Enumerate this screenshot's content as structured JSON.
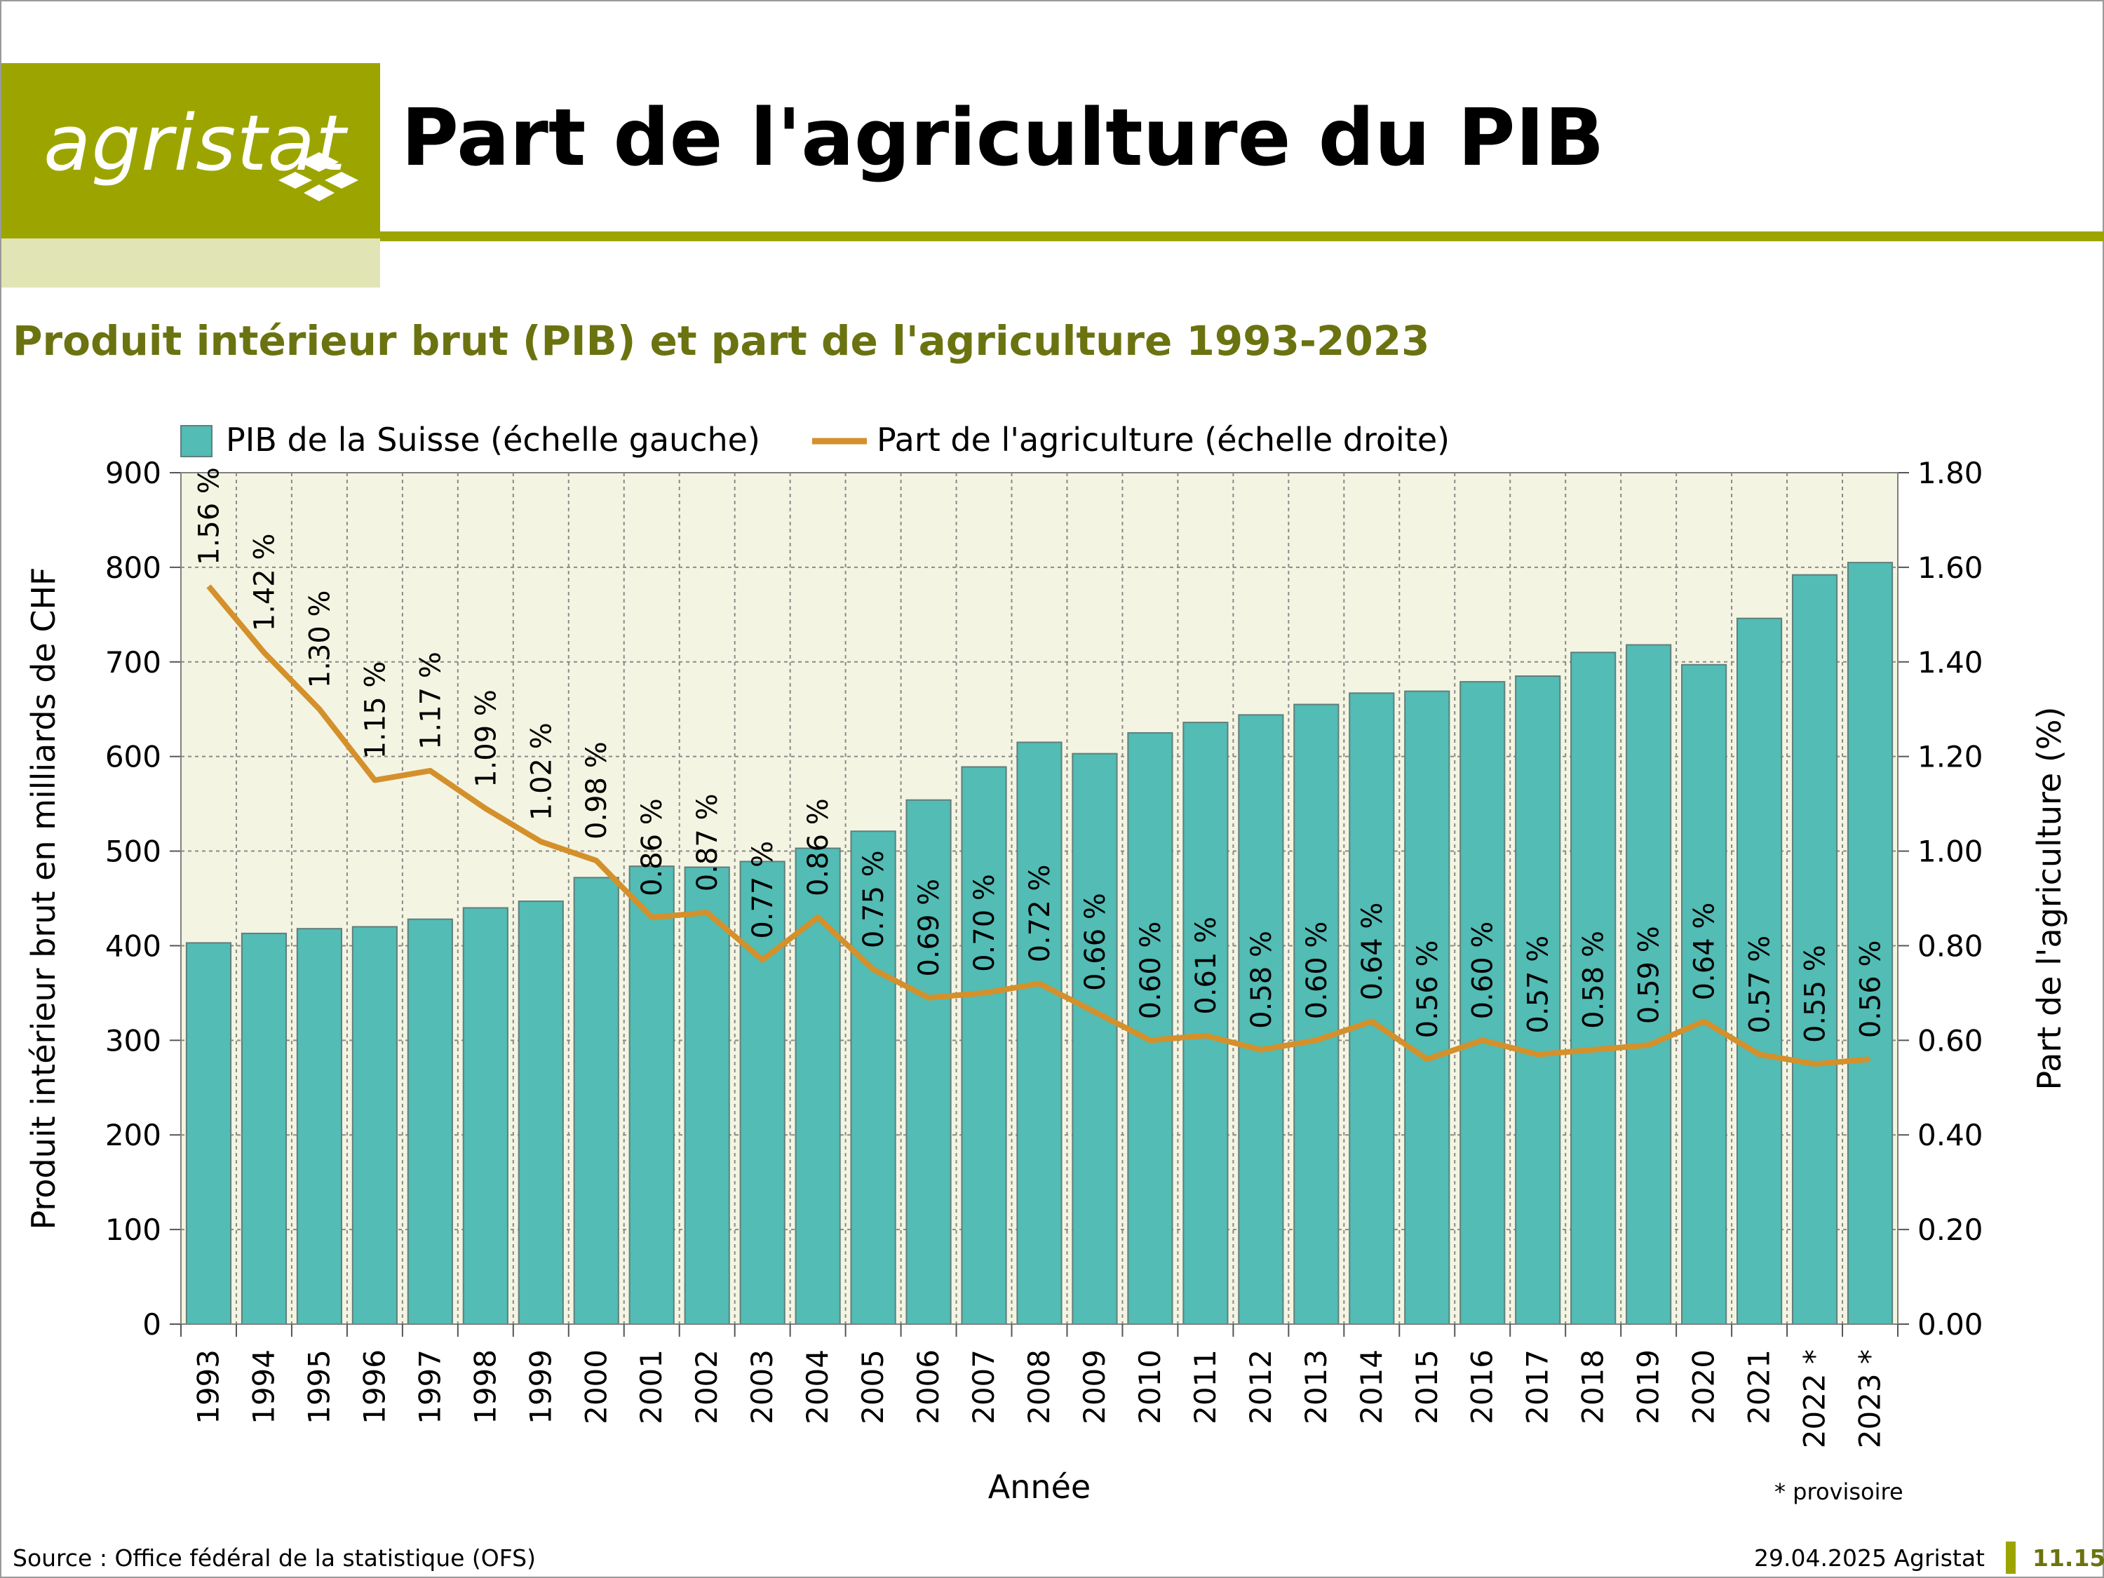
{
  "header": {
    "logo_text": "agristat",
    "title": "Part de l'agriculture du PIB"
  },
  "chart_title": "Produit intérieur brut (PIB) et part de l'agriculture 1993-2023",
  "footer": {
    "source": "Source : Office fédéral de la statistique (OFS)",
    "date": "29.04.2025 Agristat",
    "page": "11.15"
  },
  "note": "* provisoire",
  "colors": {
    "brand": "#9ca500",
    "bar": "#52bcb5",
    "line": "#d4902b",
    "plot_bg": "#f4f4e2",
    "title_green": "#6b7310"
  },
  "chart_data": {
    "type": "bar",
    "title": "Produit intérieur brut (PIB) et part de l'agriculture 1993-2023",
    "xlabel": "Année",
    "ylabel": "Produit intérieur brut en milliards de CHF",
    "y2label": "Part de l'agriculture (%)",
    "ylim": [
      0,
      900
    ],
    "y2lim": [
      0,
      1.8
    ],
    "yticks": [
      "0",
      "100",
      "200",
      "300",
      "400",
      "500",
      "600",
      "700",
      "800",
      "900"
    ],
    "y2ticks": [
      "0.00",
      "0.20",
      "0.40",
      "0.60",
      "0.80",
      "1.00",
      "1.20",
      "1.40",
      "1.60",
      "1.80"
    ],
    "grid": true,
    "legend_position": "top",
    "categories": [
      "1993",
      "1994",
      "1995",
      "1996",
      "1997",
      "1998",
      "1999",
      "2000",
      "2001",
      "2002",
      "2003",
      "2004",
      "2005",
      "2006",
      "2007",
      "2008",
      "2009",
      "2010",
      "2011",
      "2012",
      "2013",
      "2014",
      "2015",
      "2016",
      "2017",
      "2018",
      "2019",
      "2020",
      "2021",
      "2022 *",
      "2023 *"
    ],
    "series": [
      {
        "name": "PIB de la Suisse (échelle gauche)",
        "type": "bar",
        "axis": "left",
        "values": [
          403,
          413,
          418,
          420,
          428,
          440,
          447,
          472,
          484,
          483,
          489,
          503,
          521,
          554,
          589,
          615,
          603,
          625,
          636,
          644,
          655,
          667,
          669,
          679,
          685,
          710,
          718,
          697,
          746,
          792,
          805
        ]
      },
      {
        "name": "Part de l'agriculture (échelle droite)",
        "type": "line",
        "axis": "right",
        "values": [
          1.56,
          1.42,
          1.3,
          1.15,
          1.17,
          1.09,
          1.02,
          0.98,
          0.86,
          0.87,
          0.77,
          0.86,
          0.75,
          0.69,
          0.7,
          0.72,
          0.66,
          0.6,
          0.61,
          0.58,
          0.6,
          0.64,
          0.56,
          0.6,
          0.57,
          0.58,
          0.59,
          0.64,
          0.57,
          0.55,
          0.56
        ],
        "labels": [
          "1.56 %",
          "1.42 %",
          "1.30 %",
          "1.15 %",
          "1.17 %",
          "1.09 %",
          "1.02 %",
          "0.98 %",
          "0.86 %",
          "0.87 %",
          "0.77 %",
          "0.86 %",
          "0.75 %",
          "0.69 %",
          "0.70 %",
          "0.72 %",
          "0.66 %",
          "0.60 %",
          "0.61 %",
          "0.58 %",
          "0.60 %",
          "0.64 %",
          "0.56 %",
          "0.60 %",
          "0.57 %",
          "0.58 %",
          "0.59 %",
          "0.64 %",
          "0.57 %",
          "0.55 %",
          "0.56 %"
        ]
      }
    ]
  }
}
